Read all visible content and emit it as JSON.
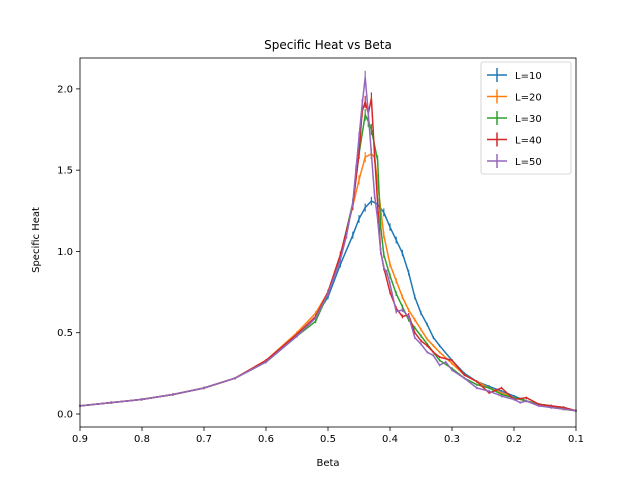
{
  "chart_data": {
    "type": "line",
    "title": "Specific Heat vs Beta",
    "xlabel": "Beta",
    "ylabel": "Specific Heat",
    "xlim": [
      0.9,
      0.1
    ],
    "ylim": [
      -0.08,
      2.19
    ],
    "x_ticks": [
      0.9,
      0.8,
      0.7,
      0.6,
      0.5,
      0.4,
      0.3,
      0.2,
      0.1
    ],
    "y_ticks": [
      0.0,
      0.5,
      1.0,
      1.5,
      2.0
    ],
    "x_tick_labels": [
      "0.9",
      "0.8",
      "0.7",
      "0.6",
      "0.5",
      "0.4",
      "0.3",
      "0.2",
      "0.1"
    ],
    "y_tick_labels": [
      "0.0",
      "0.5",
      "1.0",
      "1.5",
      "2.0"
    ],
    "grid": false,
    "legend_position": "top-right",
    "series": [
      {
        "name": "L=10",
        "color": "#1f77b4",
        "x": [
          0.9,
          0.85,
          0.8,
          0.75,
          0.7,
          0.65,
          0.6,
          0.55,
          0.52,
          0.5,
          0.48,
          0.46,
          0.45,
          0.44,
          0.43,
          0.42,
          0.41,
          0.4,
          0.39,
          0.38,
          0.37,
          0.36,
          0.35,
          0.34,
          0.33,
          0.32,
          0.3,
          0.28,
          0.26,
          0.24,
          0.22,
          0.2,
          0.18,
          0.16,
          0.14,
          0.12,
          0.1
        ],
        "y": [
          0.05,
          0.07,
          0.09,
          0.12,
          0.16,
          0.22,
          0.32,
          0.48,
          0.6,
          0.72,
          0.92,
          1.1,
          1.2,
          1.27,
          1.31,
          1.29,
          1.24,
          1.15,
          1.07,
          0.99,
          0.87,
          0.72,
          0.62,
          0.55,
          0.47,
          0.42,
          0.33,
          0.25,
          0.2,
          0.17,
          0.14,
          0.11,
          0.08,
          0.06,
          0.05,
          0.04,
          0.02
        ]
      },
      {
        "name": "L=20",
        "color": "#ff7f0e",
        "x": [
          0.9,
          0.85,
          0.8,
          0.75,
          0.7,
          0.65,
          0.6,
          0.55,
          0.52,
          0.5,
          0.48,
          0.46,
          0.45,
          0.44,
          0.43,
          0.425,
          0.42,
          0.41,
          0.4,
          0.39,
          0.38,
          0.37,
          0.36,
          0.35,
          0.34,
          0.33,
          0.32,
          0.3,
          0.28,
          0.26,
          0.24,
          0.22,
          0.2,
          0.18,
          0.16,
          0.14,
          0.12,
          0.1
        ],
        "y": [
          0.05,
          0.07,
          0.09,
          0.12,
          0.16,
          0.22,
          0.33,
          0.5,
          0.62,
          0.75,
          0.98,
          1.28,
          1.44,
          1.58,
          1.6,
          1.58,
          1.42,
          1.1,
          0.92,
          0.82,
          0.72,
          0.64,
          0.58,
          0.52,
          0.46,
          0.42,
          0.38,
          0.31,
          0.24,
          0.2,
          0.16,
          0.13,
          0.1,
          0.08,
          0.06,
          0.04,
          0.03,
          0.02
        ]
      },
      {
        "name": "L=30",
        "color": "#2ca02c",
        "x": [
          0.9,
          0.85,
          0.8,
          0.75,
          0.7,
          0.65,
          0.6,
          0.55,
          0.52,
          0.5,
          0.48,
          0.46,
          0.45,
          0.44,
          0.435,
          0.43,
          0.42,
          0.415,
          0.41,
          0.4,
          0.39,
          0.38,
          0.37,
          0.36,
          0.35,
          0.34,
          0.33,
          0.32,
          0.3,
          0.28,
          0.26,
          0.24,
          0.22,
          0.2,
          0.18,
          0.16,
          0.14,
          0.12,
          0.1
        ],
        "y": [
          0.05,
          0.07,
          0.09,
          0.12,
          0.16,
          0.22,
          0.32,
          0.48,
          0.57,
          0.74,
          0.97,
          1.3,
          1.6,
          1.84,
          1.8,
          1.75,
          1.56,
          1.15,
          0.98,
          0.85,
          0.74,
          0.66,
          0.58,
          0.53,
          0.48,
          0.43,
          0.38,
          0.33,
          0.28,
          0.22,
          0.18,
          0.16,
          0.12,
          0.1,
          0.08,
          0.06,
          0.05,
          0.03,
          0.02
        ]
      },
      {
        "name": "L=40",
        "color": "#d62728",
        "x": [
          0.9,
          0.85,
          0.8,
          0.75,
          0.7,
          0.65,
          0.6,
          0.55,
          0.52,
          0.5,
          0.48,
          0.46,
          0.45,
          0.445,
          0.44,
          0.435,
          0.43,
          0.425,
          0.42,
          0.415,
          0.41,
          0.4,
          0.39,
          0.38,
          0.37,
          0.36,
          0.35,
          0.34,
          0.33,
          0.32,
          0.3,
          0.28,
          0.26,
          0.24,
          0.22,
          0.2,
          0.18,
          0.16,
          0.14,
          0.12,
          0.1
        ],
        "y": [
          0.05,
          0.07,
          0.09,
          0.12,
          0.16,
          0.22,
          0.33,
          0.49,
          0.6,
          0.75,
          0.98,
          1.28,
          1.6,
          1.86,
          1.92,
          1.85,
          1.94,
          1.6,
          1.3,
          1.0,
          0.9,
          0.75,
          0.65,
          0.6,
          0.61,
          0.5,
          0.45,
          0.42,
          0.38,
          0.35,
          0.33,
          0.24,
          0.2,
          0.13,
          0.16,
          0.09,
          0.1,
          0.06,
          0.05,
          0.04,
          0.02
        ]
      },
      {
        "name": "L=50",
        "color": "#9467bd",
        "x": [
          0.9,
          0.85,
          0.8,
          0.75,
          0.7,
          0.65,
          0.6,
          0.55,
          0.52,
          0.5,
          0.48,
          0.47,
          0.46,
          0.455,
          0.45,
          0.445,
          0.44,
          0.435,
          0.43,
          0.425,
          0.42,
          0.415,
          0.41,
          0.405,
          0.4,
          0.39,
          0.38,
          0.37,
          0.36,
          0.35,
          0.34,
          0.33,
          0.32,
          0.31,
          0.3,
          0.28,
          0.26,
          0.24,
          0.22,
          0.2,
          0.19,
          0.18,
          0.16,
          0.14,
          0.12,
          0.1
        ],
        "y": [
          0.05,
          0.07,
          0.09,
          0.12,
          0.16,
          0.22,
          0.32,
          0.48,
          0.59,
          0.74,
          0.95,
          1.1,
          1.3,
          1.5,
          1.7,
          1.9,
          2.07,
          1.85,
          1.6,
          1.35,
          1.2,
          1.0,
          0.9,
          0.87,
          0.8,
          0.63,
          0.64,
          0.6,
          0.47,
          0.43,
          0.38,
          0.36,
          0.3,
          0.32,
          0.27,
          0.22,
          0.16,
          0.14,
          0.11,
          0.09,
          0.07,
          0.08,
          0.05,
          0.04,
          0.03,
          0.02
        ]
      }
    ]
  }
}
